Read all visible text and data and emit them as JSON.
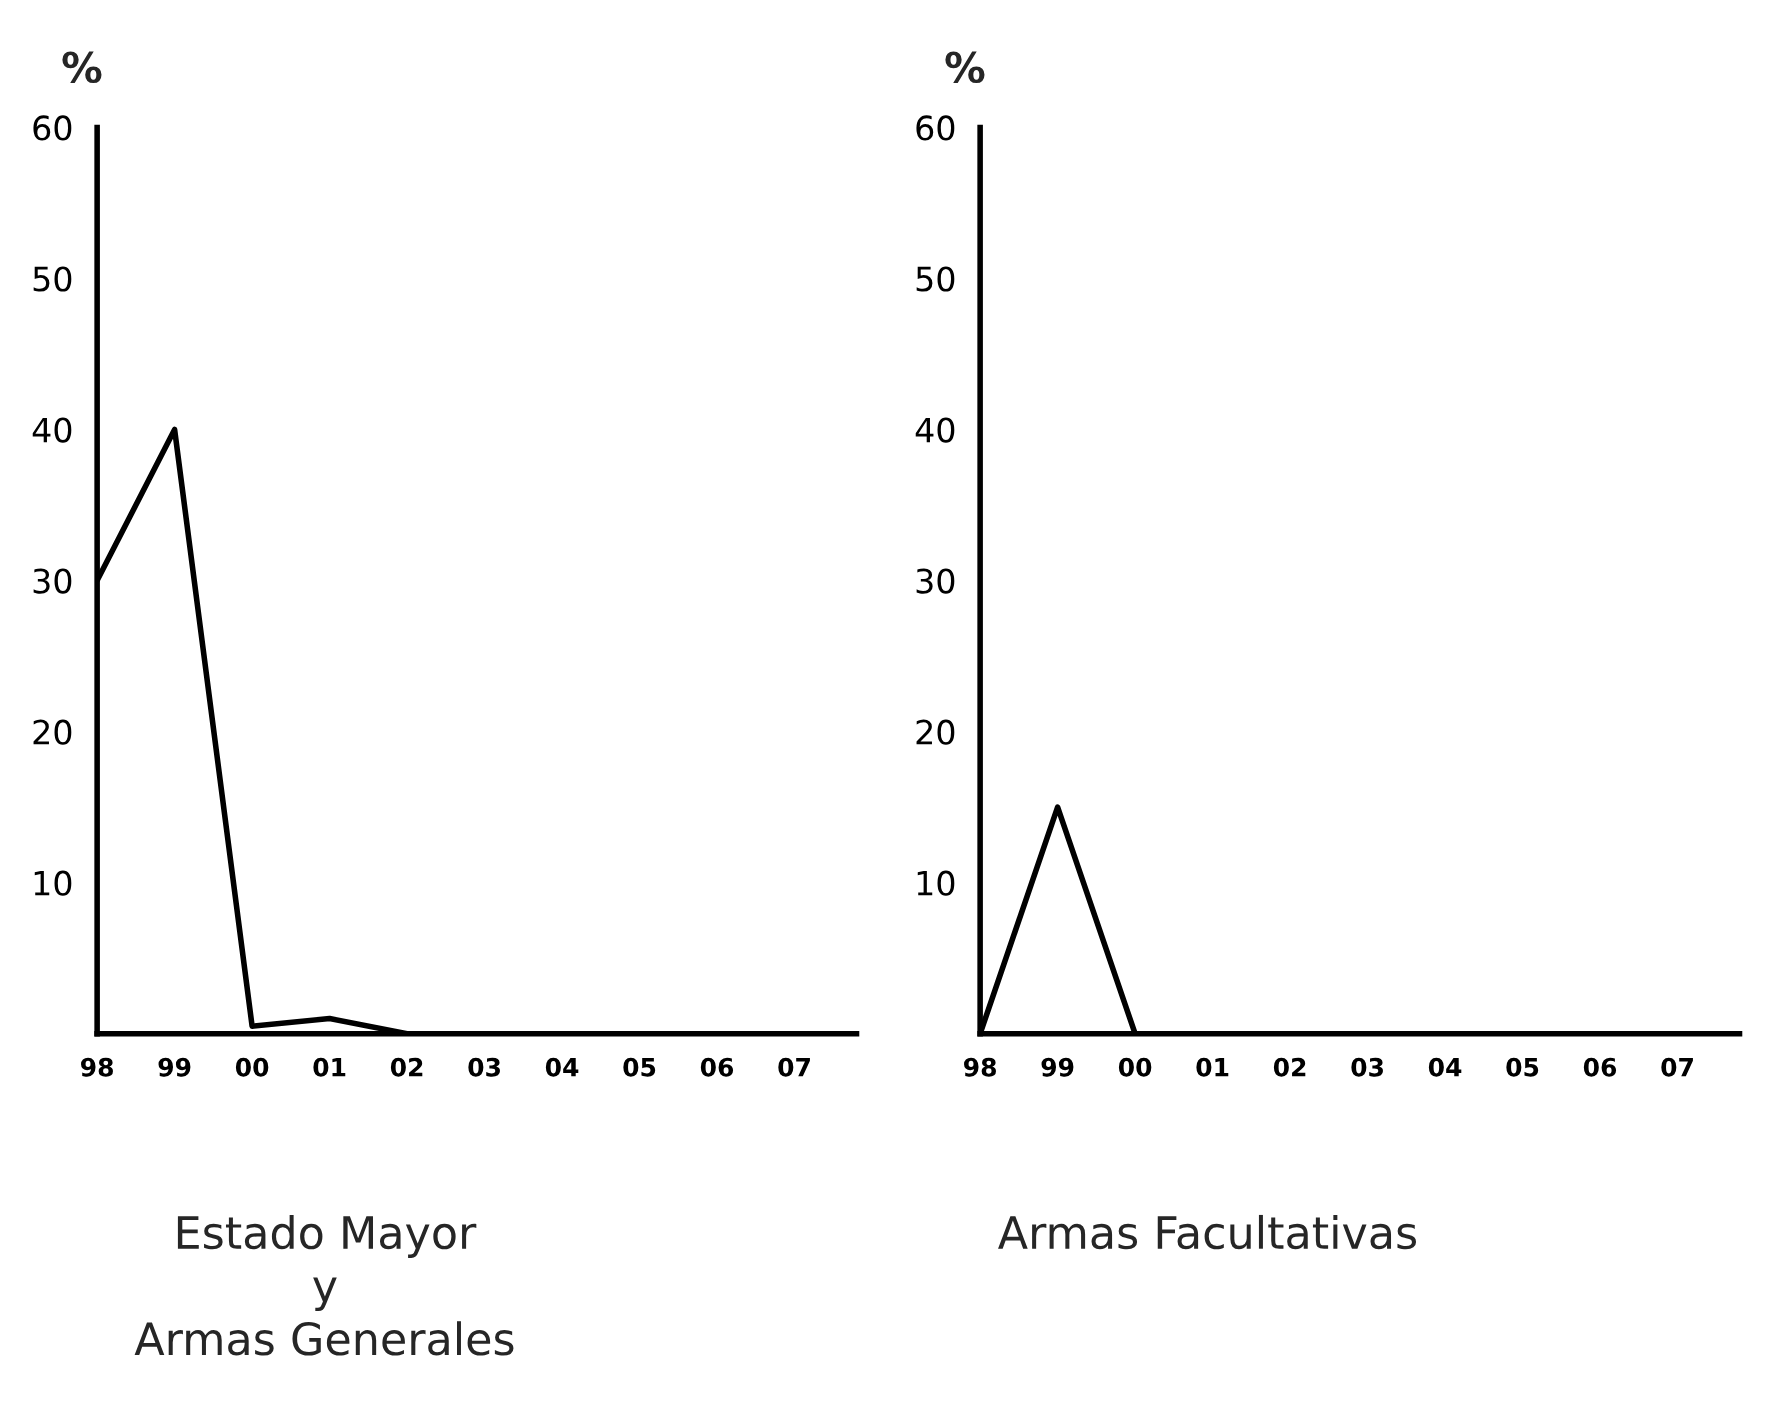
{
  "chart_data": [
    {
      "type": "line",
      "title": "Estado Mayor\ny\nArmas Generales",
      "ylabel": "%",
      "categories": [
        "98",
        "99",
        "00",
        "01",
        "02",
        "03",
        "04",
        "05",
        "06",
        "07"
      ],
      "series": [
        {
          "color": "#000000",
          "values": [
            30,
            40,
            0.5,
            1,
            0,
            null,
            null,
            null,
            null,
            null
          ]
        }
      ],
      "ylim": [
        0,
        60
      ],
      "yticks": [
        10,
        20,
        30,
        40,
        50,
        60
      ],
      "grid": false,
      "marker": "none",
      "line_style": "solid"
    },
    {
      "type": "line",
      "title": "Armas Facultativas",
      "ylabel": "%",
      "categories": [
        "98",
        "99",
        "00",
        "01",
        "02",
        "03",
        "04",
        "05",
        "06",
        "07"
      ],
      "series": [
        {
          "color": "#000000",
          "values": [
            0,
            15,
            0,
            null,
            null,
            null,
            null,
            null,
            null,
            null
          ]
        }
      ],
      "ylim": [
        0,
        60
      ],
      "yticks": [
        10,
        20,
        30,
        40,
        50,
        60
      ],
      "grid": false,
      "marker": "none",
      "line_style": "solid"
    }
  ]
}
